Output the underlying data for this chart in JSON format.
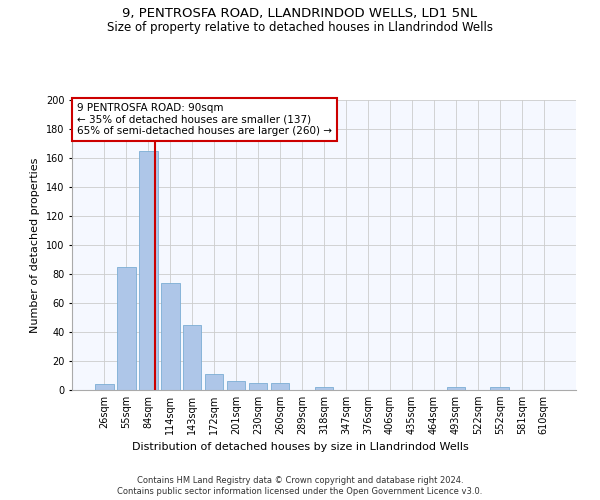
{
  "title1": "9, PENTROSFA ROAD, LLANDRINDOD WELLS, LD1 5NL",
  "title2": "Size of property relative to detached houses in Llandrindod Wells",
  "xlabel": "Distribution of detached houses by size in Llandrindod Wells",
  "ylabel": "Number of detached properties",
  "footnote1": "Contains HM Land Registry data © Crown copyright and database right 2024.",
  "footnote2": "Contains public sector information licensed under the Open Government Licence v3.0.",
  "bar_labels": [
    "26sqm",
    "55sqm",
    "84sqm",
    "114sqm",
    "143sqm",
    "172sqm",
    "201sqm",
    "230sqm",
    "260sqm",
    "289sqm",
    "318sqm",
    "347sqm",
    "376sqm",
    "406sqm",
    "435sqm",
    "464sqm",
    "493sqm",
    "522sqm",
    "552sqm",
    "581sqm",
    "610sqm"
  ],
  "bar_values": [
    4,
    85,
    165,
    74,
    45,
    11,
    6,
    5,
    5,
    0,
    2,
    0,
    0,
    0,
    0,
    0,
    2,
    0,
    2,
    0,
    0
  ],
  "bar_color": "#aec6e8",
  "bar_edge_color": "#7badd4",
  "annotation_box_color": "#cc0000",
  "annotation_line1": "9 PENTROSFA ROAD: 90sqm",
  "annotation_line2": "← 35% of detached houses are smaller (137)",
  "annotation_line3": "65% of semi-detached houses are larger (260) →",
  "vline_x_bar_index": 2.33,
  "ylim": [
    0,
    200
  ],
  "yticks": [
    0,
    20,
    40,
    60,
    80,
    100,
    120,
    140,
    160,
    180,
    200
  ],
  "bg_color": "#ffffff",
  "plot_bg_color": "#f5f8ff",
  "grid_color": "#cccccc",
  "title1_fontsize": 9.5,
  "title2_fontsize": 8.5,
  "xlabel_fontsize": 8,
  "ylabel_fontsize": 8,
  "tick_fontsize": 7,
  "footnote_fontsize": 6,
  "annotation_fontsize": 7.5
}
